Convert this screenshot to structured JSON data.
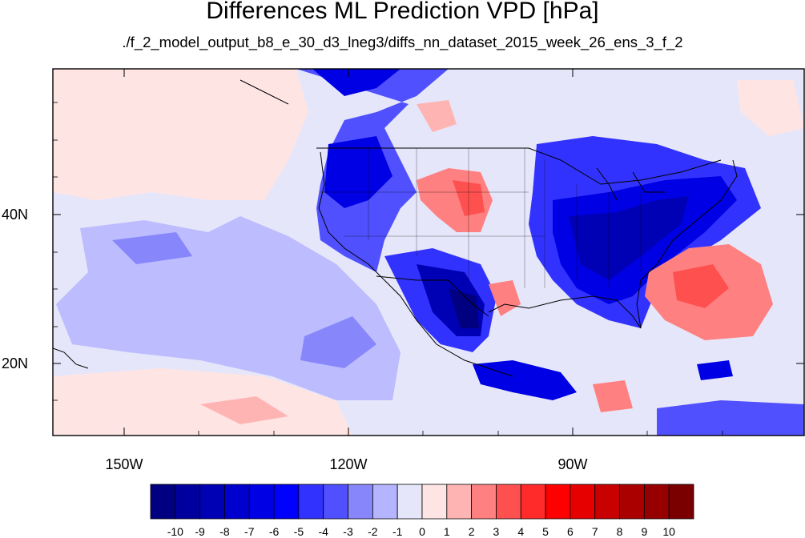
{
  "title": "Differences ML Prediction VPD [hPa]",
  "subtitle": "./f_2_model_output_b8_e_30_d3_lneg3/diffs_nn_dataset_2015_week_26_ens_3_f_2",
  "lat_labels": [
    "40N",
    "20N"
  ],
  "lon_labels": [
    "150W",
    "120W",
    "90W"
  ],
  "colorbar": {
    "labels": [
      "-10",
      "-9",
      "-8",
      "-7",
      "-6",
      "-5",
      "-4",
      "-3",
      "-2",
      "-1",
      "0",
      "1",
      "2",
      "3",
      "4",
      "5",
      "6",
      "7",
      "8",
      "9",
      "10"
    ],
    "colors": [
      "#000080",
      "#00009e",
      "#0000b4",
      "#0000ce",
      "#0000e4",
      "#0000ff",
      "#3232ff",
      "#5050ff",
      "#8787fb",
      "#b4b4ff",
      "#e6e6fa",
      "#ffe4e4",
      "#ffb4b4",
      "#ff8080",
      "#ff5050",
      "#ff2a2a",
      "#ff0000",
      "#e60000",
      "#c80000",
      "#aa0000",
      "#960000",
      "#7a0000"
    ]
  },
  "map_data": {
    "background_color": "#e6e6fa",
    "region_colors": {
      "ne_pacific_positive": "#ffe4e4",
      "pacific_negative": "#b4b4ff",
      "west_coast_strong": "#0000e4",
      "southwest_strong": "#0000b4",
      "southeast_strong": "#0000e4",
      "plains_positive": "#ff8080",
      "atlantic_positive": "#ff8080",
      "atlantic_core": "#ff5050"
    }
  }
}
